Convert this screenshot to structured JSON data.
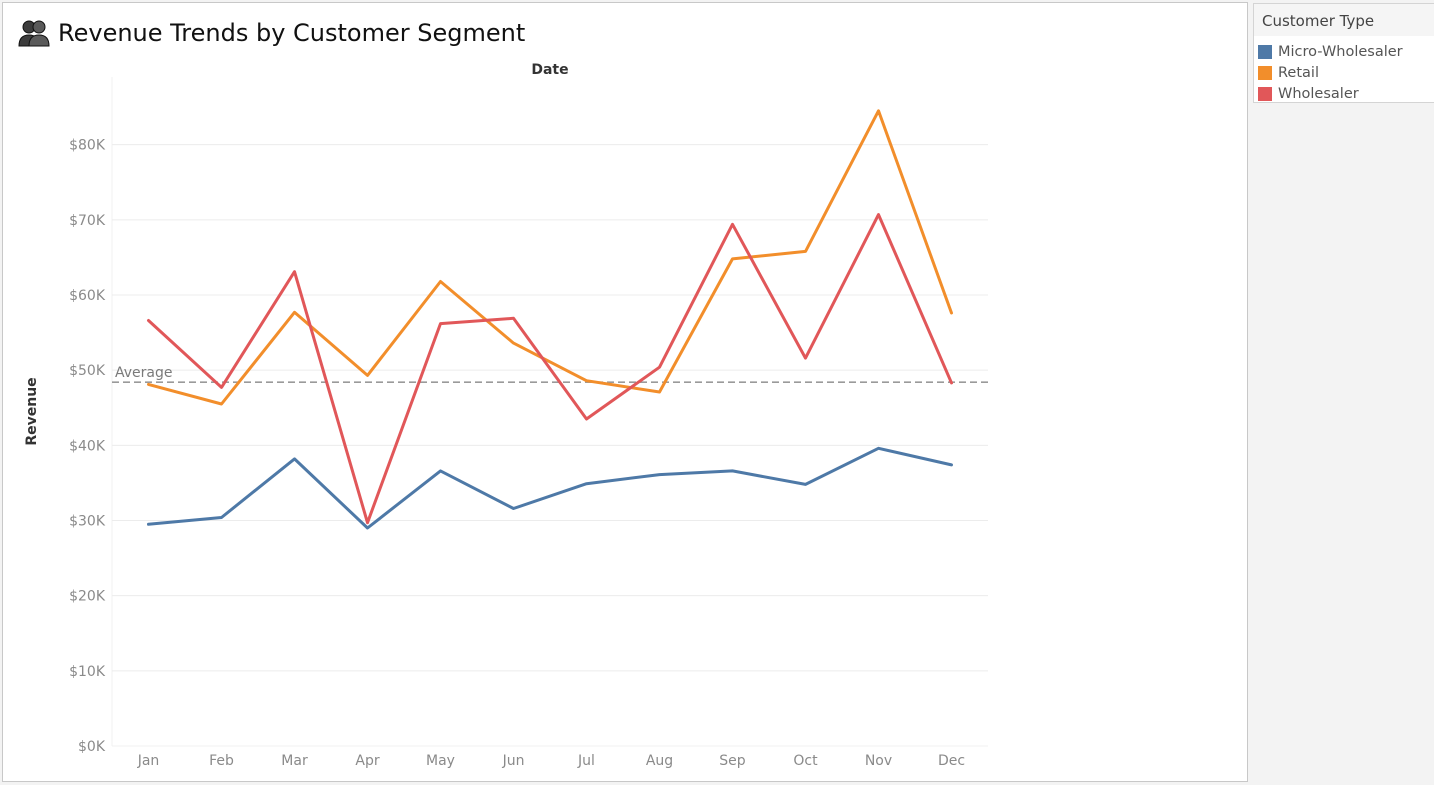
{
  "header": {
    "title": "Revenue Trends by Customer Segment",
    "icon": "people-icon"
  },
  "legend": {
    "title": "Customer Type",
    "items": [
      {
        "label": "Micro-Wholesaler",
        "color": "#4e79a7"
      },
      {
        "label": "Retail",
        "color": "#f28e2b"
      },
      {
        "label": "Wholesaler",
        "color": "#e15759"
      }
    ]
  },
  "chart_data": {
    "type": "line",
    "title": "Revenue Trends by Customer Segment",
    "xlabel": "Date",
    "ylabel": "Revenue",
    "categories": [
      "Jan",
      "Feb",
      "Mar",
      "Apr",
      "May",
      "Jun",
      "Jul",
      "Aug",
      "Sep",
      "Oct",
      "Nov",
      "Dec"
    ],
    "ylim": [
      0,
      89000
    ],
    "yticks": [
      0,
      10000,
      20000,
      30000,
      40000,
      50000,
      60000,
      70000,
      80000
    ],
    "ytick_labels": [
      "$0K",
      "$10K",
      "$20K",
      "$30K",
      "$40K",
      "$50K",
      "$60K",
      "$70K",
      "$80K"
    ],
    "grid": true,
    "legend_position": "right",
    "series": [
      {
        "name": "Micro-Wholesaler",
        "color": "#4e79a7",
        "values": [
          29500,
          30400,
          38200,
          29000,
          36600,
          31600,
          34900,
          36100,
          36600,
          34800,
          39600,
          37400
        ]
      },
      {
        "name": "Retail",
        "color": "#f28e2b",
        "values": [
          48100,
          45500,
          57700,
          49300,
          61800,
          53600,
          48600,
          47100,
          64800,
          65800,
          84500,
          57600
        ]
      },
      {
        "name": "Wholesaler",
        "color": "#e15759",
        "values": [
          56600,
          47700,
          63100,
          29700,
          56200,
          56900,
          43500,
          50400,
          69400,
          51600,
          70700,
          48300
        ]
      }
    ],
    "reference_line": {
      "label": "Average",
      "value": 48400,
      "color": "#9a9a9a"
    }
  }
}
